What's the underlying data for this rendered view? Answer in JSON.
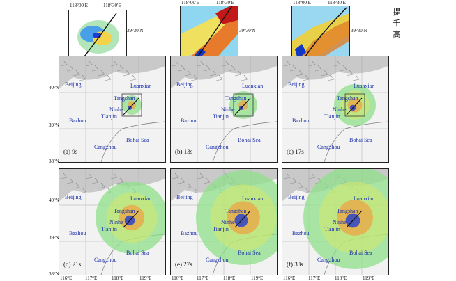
{
  "panels": [
    {
      "label": "(a) 9s"
    },
    {
      "label": "(b) 13s"
    },
    {
      "label": "(c) 17s"
    },
    {
      "label": "(d) 21s"
    },
    {
      "label": "(e) 27s"
    },
    {
      "label": "(f) 33s"
    }
  ],
  "cities": {
    "beijing": "Beijing",
    "luanxian": "Luanxian",
    "tangshan": "Tangshan",
    "ninhe": "Ninhe",
    "tianjin": "Tianjin",
    "bazhou": "Bazhou",
    "bohai": "Bohai Sea",
    "cangzhou": "Cangzhou"
  },
  "lat_ticks": [
    "40°N",
    "39°N",
    "38°N"
  ],
  "lon_ticks": [
    "116°E",
    "117°E",
    "118°E",
    "119°E"
  ],
  "inset_ticks": {
    "lon1": "118°00′E",
    "lon2": "118°30′E",
    "lat": "39°30′N"
  },
  "side_text": [
    "提",
    "千",
    "高"
  ],
  "colors": {
    "city_text": "#1a2ea8",
    "fault_line": "#111111"
  }
}
